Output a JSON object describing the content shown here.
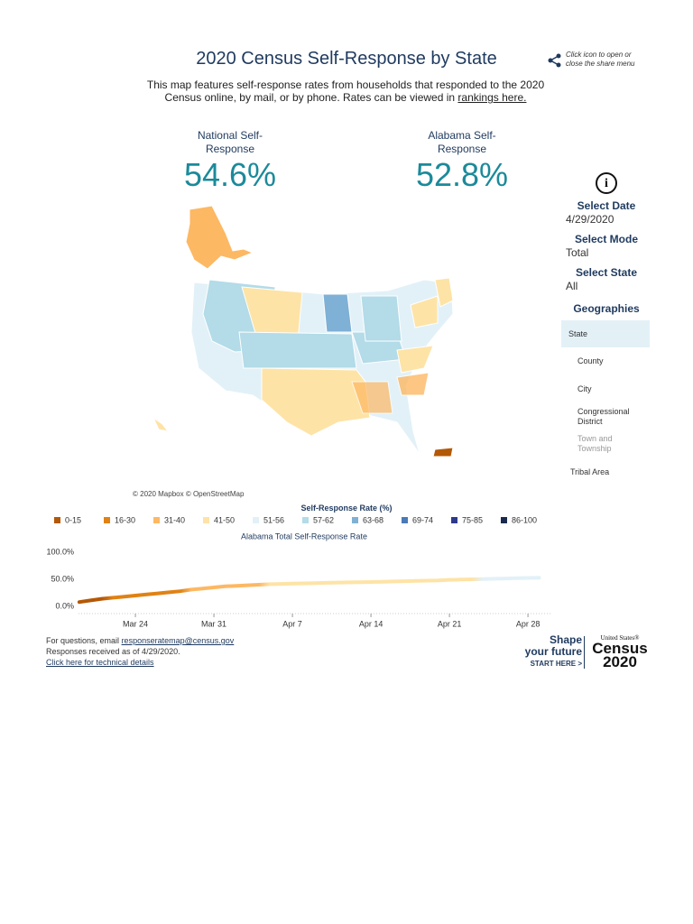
{
  "header": {
    "title": "2020 Census Self-Response by State",
    "description": "This map features self-response rates from households that responded to the 2020 Census online, by mail, or by phone. Rates can be viewed in",
    "link": "rankings here.",
    "share_hint": "Click icon to open or close the share menu"
  },
  "stats": [
    {
      "label": "National Self-Response",
      "value": "54.6%"
    },
    {
      "label": "Alabama Self-Response",
      "value": "52.8%"
    }
  ],
  "sidebar": {
    "filters": [
      {
        "label": "Select Date",
        "value": "4/29/2020"
      },
      {
        "label": "Select Mode",
        "value": "Total"
      },
      {
        "label": "Select State",
        "value": "All"
      }
    ],
    "geographies_title": "Geographies",
    "options": [
      "State",
      "County",
      "City",
      "Congressional District",
      "Town and Township",
      "Tribal Area"
    ]
  },
  "map_credit": "© 2020 Mapbox © OpenStreetMap",
  "legend": {
    "title": "Self-Response Rate (%)",
    "items": [
      {
        "label": "0-15",
        "color": "#b35806"
      },
      {
        "label": "16-30",
        "color": "#e08214"
      },
      {
        "label": "31-40",
        "color": "#fdb863"
      },
      {
        "label": "41-50",
        "color": "#fee3a6"
      },
      {
        "label": "51-56",
        "color": "#e2f1f7"
      },
      {
        "label": "57-62",
        "color": "#b3dbe8"
      },
      {
        "label": "63-68",
        "color": "#7fb0d6"
      },
      {
        "label": "69-74",
        "color": "#4a7ab8"
      },
      {
        "label": "75-85",
        "color": "#2d3a8c"
      },
      {
        "label": "86-100",
        "color": "#1a2a4f"
      }
    ]
  },
  "chart_data": {
    "type": "line",
    "title": "Alabama Total Self-Response Rate",
    "categories": [
      null,
      null,
      null,
      null,
      null,
      "Mar 24",
      null,
      null,
      null,
      null,
      null,
      null,
      "Mar 31",
      null,
      null,
      null,
      null,
      null,
      null,
      "Apr 7",
      null,
      null,
      null,
      null,
      null,
      null,
      "Apr 14",
      null,
      null,
      null,
      null,
      null,
      null,
      "Apr 21",
      null,
      null,
      null,
      null,
      null,
      null,
      "Apr 28",
      null
    ],
    "series": [
      {
        "name": "Alabama",
        "values": [
          8,
          11,
          14,
          16,
          18,
          20,
          22,
          24,
          26,
          28,
          31,
          33,
          35,
          37,
          38,
          39,
          40,
          41,
          41.5,
          42,
          42.5,
          43,
          43.5,
          44,
          44.3,
          44.7,
          45,
          45.5,
          46,
          46.5,
          47,
          47.5,
          48,
          49,
          49.5,
          50,
          50.5,
          51,
          51.5,
          52,
          52.5,
          52.8
        ]
      }
    ],
    "ylim": [
      0,
      100
    ],
    "yticks": [
      {
        "value": 0,
        "label": "0.0%"
      },
      {
        "value": 50,
        "label": "50.0%"
      },
      {
        "value": 100,
        "label": "100.0%"
      }
    ]
  },
  "footer": {
    "questions": "For questions, email",
    "email": "responseratemap@census.gov",
    "received": "Responses received as of 4/29/2020.",
    "technical": "Click here for technical details"
  },
  "logo": {
    "shape": "Shape",
    "future": "your future",
    "start": "START HERE >",
    "us": "United States®",
    "census": "Census",
    "year": "2020"
  }
}
